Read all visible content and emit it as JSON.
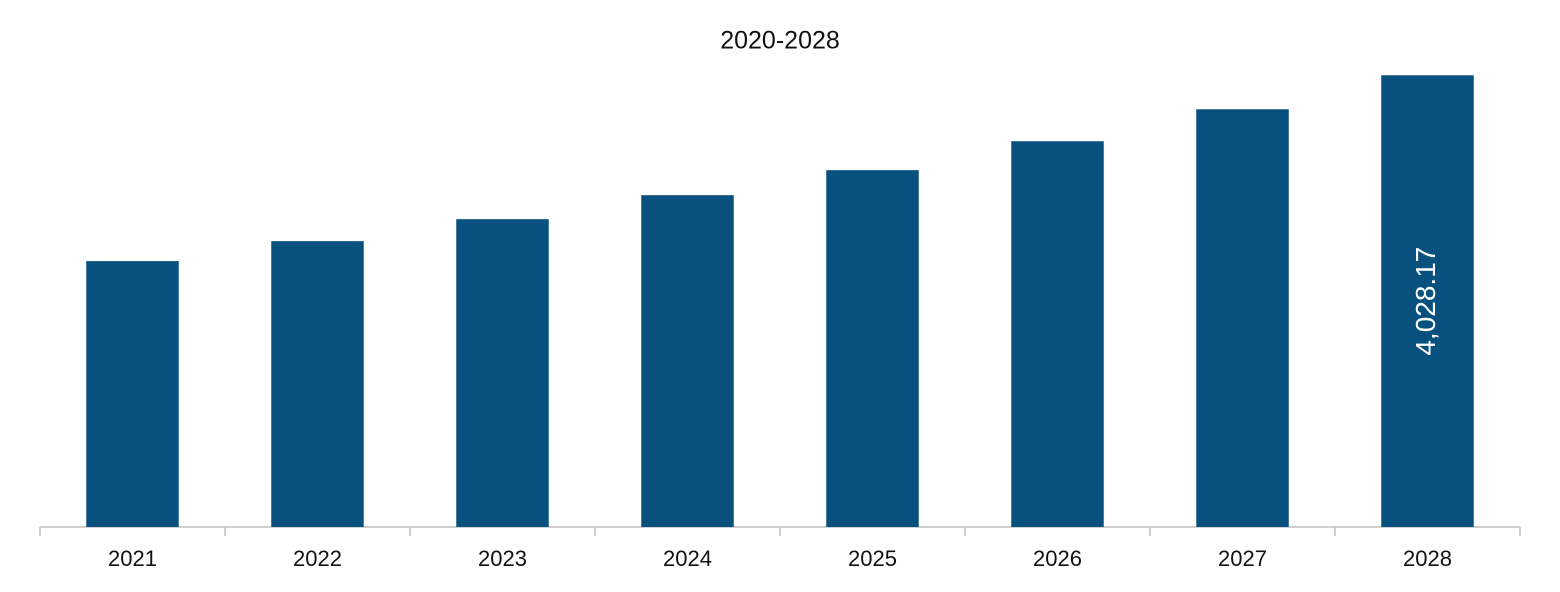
{
  "chart_data": {
    "type": "bar",
    "title": "2020-2028",
    "categories": [
      "2021",
      "2022",
      "2023",
      "2024",
      "2025",
      "2026",
      "2027",
      "2028"
    ],
    "values": [
      2371,
      2549,
      2745,
      2959,
      3182,
      3440,
      3725,
      4028.17
    ],
    "value_labels": [
      null,
      null,
      null,
      null,
      null,
      null,
      null,
      "4,028.17"
    ],
    "color": "#08517e",
    "ylim": [
      0,
      4200
    ],
    "grid": false
  }
}
